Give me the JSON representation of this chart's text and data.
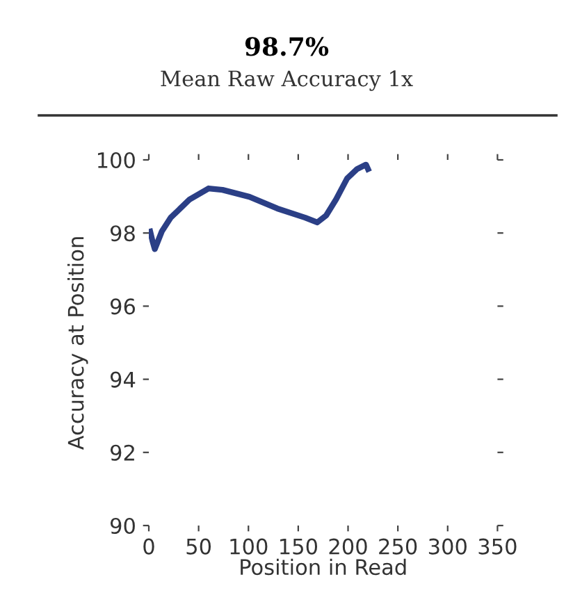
{
  "chart_data": {
    "type": "line",
    "title": "98.7%",
    "subtitle": "Mean Raw Accuracy 1x",
    "xlabel": "Position in Read",
    "ylabel": "Accuracy at Position",
    "x": [
      1.4,
      3.7,
      6,
      13,
      22,
      41,
      60,
      74,
      101,
      129,
      157,
      169,
      178,
      188,
      199,
      209,
      218,
      220
    ],
    "series": [
      {
        "color": "#2b3f86",
        "values": [
          98.04,
          97.78,
          97.56,
          98.04,
          98.42,
          98.92,
          99.22,
          99.18,
          98.99,
          98.67,
          98.42,
          98.29,
          98.48,
          98.92,
          99.49,
          99.75,
          99.87,
          99.75
        ]
      }
    ],
    "xlim": [
      0,
      350
    ],
    "xticks": [
      0,
      50,
      100,
      150,
      200,
      250,
      300,
      350
    ],
    "ylim": [
      90,
      100
    ],
    "yticks": [
      90,
      92,
      94,
      96,
      98,
      100
    ],
    "grid": false,
    "legend": false,
    "marker": "none",
    "line_style": "solid"
  }
}
